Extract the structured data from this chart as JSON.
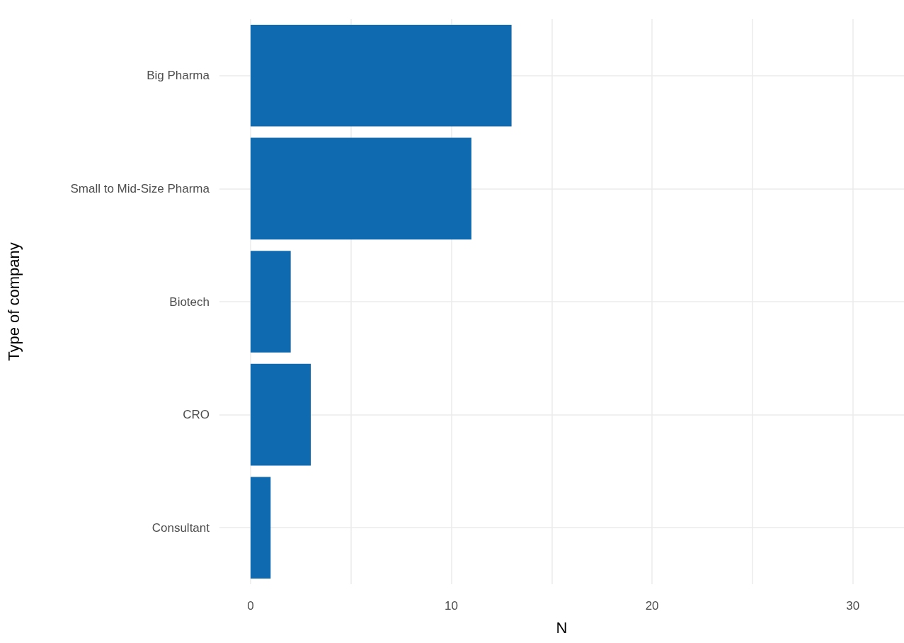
{
  "chart_data": {
    "type": "bar",
    "orientation": "horizontal",
    "xlabel": "N",
    "ylabel": "Type of company",
    "categories": [
      "Big Pharma",
      "Small to Mid-Size Pharma",
      "Biotech",
      "CRO",
      "Consultant"
    ],
    "values": [
      13,
      11,
      2,
      3,
      1
    ],
    "color": "#106ab0",
    "xlim": [
      -1.55,
      32.55
    ],
    "xticks": [
      0,
      {
        "value": 5,
        "label": null
      },
      10,
      {
        "value": 15,
        "label": null
      },
      20,
      {
        "value": 25,
        "label": null
      },
      30
    ],
    "grid": true
  }
}
